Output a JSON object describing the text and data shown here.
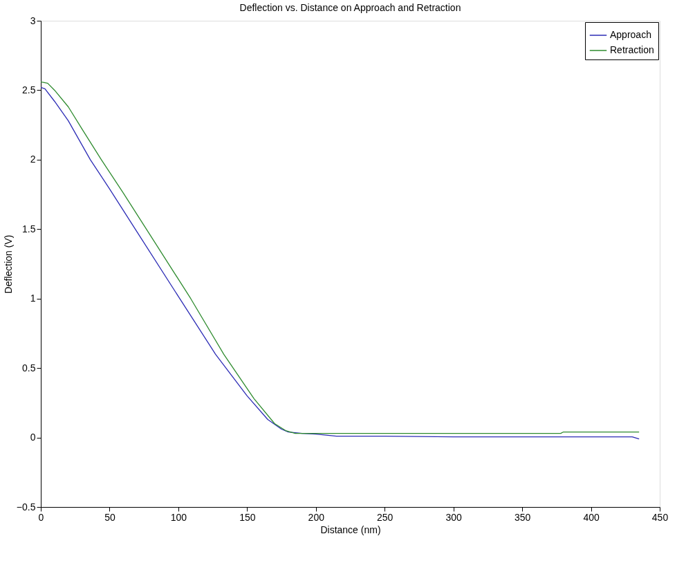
{
  "chart_data": {
    "type": "line",
    "title": "Deflection vs. Distance on Approach and Retraction",
    "xlabel": "Distance (nm)",
    "ylabel": "Deflection (V)",
    "xlim": [
      0,
      450
    ],
    "xticks": [
      0,
      50,
      100,
      150,
      200,
      250,
      300,
      350,
      400,
      450
    ],
    "ylim": [
      -0.5,
      3
    ],
    "yticks": [
      -0.5,
      0,
      0.5,
      1,
      1.5,
      2,
      2.5,
      3
    ],
    "grid": false,
    "legend": "top right",
    "marker": "none",
    "line_style": "solid",
    "series": [
      {
        "name": "Approach",
        "color": "#2b2bb5",
        "x": [
          0,
          3,
          10,
          20,
          36,
          50,
          70,
          101,
          127,
          150,
          165,
          175,
          180,
          190,
          200,
          215,
          250,
          300,
          350,
          400,
          430,
          435
        ],
        "values": [
          2.52,
          2.51,
          2.42,
          2.28,
          2.0,
          1.79,
          1.48,
          1.0,
          0.6,
          0.3,
          0.13,
          0.06,
          0.04,
          0.03,
          0.025,
          0.01,
          0.01,
          0.005,
          0.005,
          0.005,
          0.005,
          -0.01
        ]
      },
      {
        "name": "Retraction",
        "color": "#2e8b2e",
        "x": [
          0,
          5,
          10,
          20,
          30,
          44,
          60,
          80,
          109,
          133,
          155,
          170,
          178,
          185,
          200,
          250,
          300,
          350,
          378,
          380,
          400,
          435
        ],
        "values": [
          2.56,
          2.55,
          2.5,
          2.38,
          2.22,
          2.0,
          1.76,
          1.45,
          1.0,
          0.6,
          0.28,
          0.1,
          0.05,
          0.03,
          0.03,
          0.03,
          0.03,
          0.03,
          0.03,
          0.04,
          0.04,
          0.04
        ]
      }
    ]
  }
}
